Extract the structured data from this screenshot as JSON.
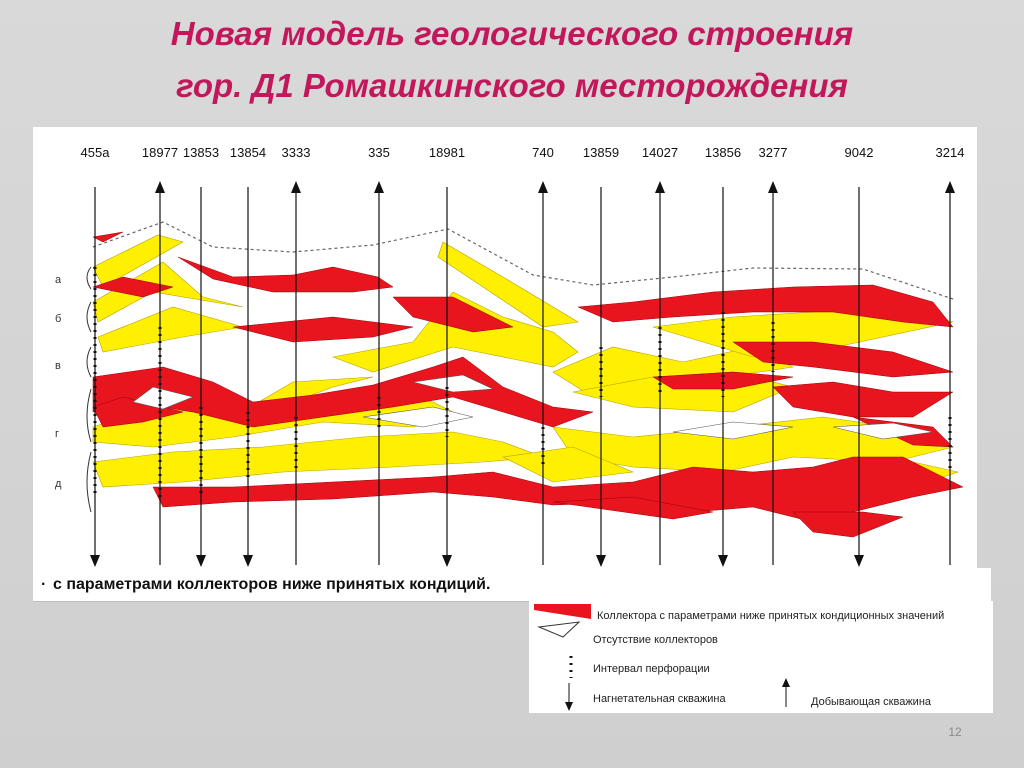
{
  "title": {
    "line1": "Новая модель геологического строения",
    "line2": "гор. Д1 Ромашкинского месторождения"
  },
  "section": {
    "wells": [
      "455a",
      "18977",
      "13853",
      "13854",
      "3333",
      "335",
      "18981",
      "740",
      "13859",
      "14027",
      "13856",
      "3277",
      "9042",
      "3214"
    ],
    "layers": [
      "а",
      "б",
      "в",
      "г",
      "д"
    ]
  },
  "note": {
    "bullet": "·",
    "text": "с параметрами коллекторов ниже принятых кондиций."
  },
  "legend": {
    "low_param_collectors": "Коллектора с параметрами  ниже принятых кондиционных значений",
    "no_collectors": "Отсутствие коллекторов",
    "perforation_interval": "Интервал перфорации",
    "injection_well": "Нагнетательная скважина",
    "production_well": "Добывающая  скважина"
  },
  "colors": {
    "title": "#c2185b",
    "collector_red": "#e8141e",
    "collector_yellow": "#ffef00"
  },
  "page_number": "12"
}
